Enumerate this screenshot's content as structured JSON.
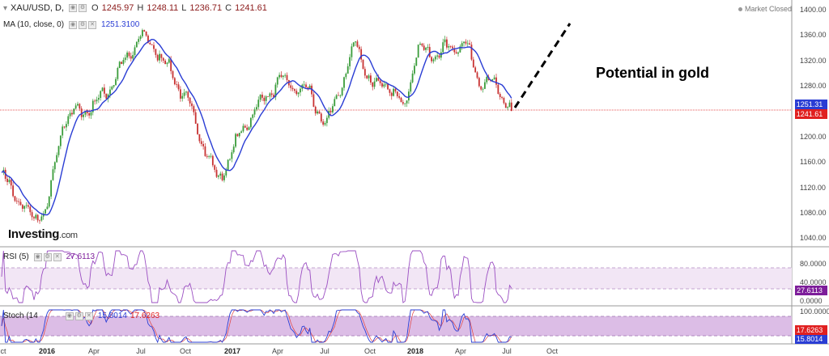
{
  "header": {
    "symbol": "XAU/USD, D,",
    "open_label": "O",
    "open": "1245.97",
    "high_label": "H",
    "high": "1248.11",
    "low_label": "L",
    "low": "1236.71",
    "close_label": "C",
    "close": "1241.61",
    "ma_label": "MA (10, close, 0)",
    "ma_value": "1251.3100",
    "market_status": "Market Closed"
  },
  "annotation": "Potential in gold",
  "logo": {
    "main": "Investing",
    "suffix": ".com"
  },
  "price_axis": {
    "ticks": [
      "1400.00",
      "1360.00",
      "1320.00",
      "1280.00",
      "1240.00",
      "1200.00",
      "1160.00",
      "1120.00",
      "1080.00",
      "1040.00"
    ]
  },
  "price_labels": {
    "ma": "1251.31",
    "close": "1241.61"
  },
  "rsi": {
    "label": "RSI (5)",
    "value": "27.6113",
    "ticks": [
      "80.0000",
      "40.0000",
      "0.0000"
    ]
  },
  "stoch": {
    "label": "Stoch (14",
    "k_value": "15.8014",
    "d_value": "17.6263",
    "ticks": [
      "100.0000"
    ]
  },
  "x_axis": {
    "ticks": [
      "ct",
      "2016",
      "Apr",
      "Jul",
      "Oct",
      "2017",
      "Apr",
      "Jul",
      "Oct",
      "2018",
      "Apr",
      "Jul",
      "Oct"
    ]
  },
  "colors": {
    "ma_line": "#2a3dd4",
    "up_candle": "#3a9c3a",
    "down_candle": "#c83232",
    "current_price": "#e02020",
    "rsi_line": "#9b4fc2",
    "stoch_k": "#2a3dd4",
    "band_fill": "#cfa6df",
    "annotation": "#000000"
  },
  "chart_data": {
    "type": "line",
    "title": "XAU/USD, D,",
    "x": [
      "2015-10",
      "2016-01",
      "2016-04",
      "2016-07",
      "2016-10",
      "2017-01",
      "2017-04",
      "2017-07",
      "2017-10",
      "2018-01",
      "2018-04",
      "2018-07"
    ],
    "ylim": [
      1030,
      1410
    ],
    "series": [
      {
        "name": "XAU/USD",
        "x": [
          "2015-10",
          "2015-12",
          "2016-01",
          "2016-02",
          "2016-04",
          "2016-05",
          "2016-07",
          "2016-08",
          "2016-10",
          "2016-12",
          "2017-02",
          "2017-04",
          "2017-06",
          "2017-07",
          "2017-09",
          "2017-10",
          "2017-11",
          "2017-12",
          "2018-01",
          "2018-02",
          "2018-04",
          "2018-05",
          "2018-06",
          "2018-07"
        ],
        "values": [
          1140,
          1070,
          1090,
          1230,
          1250,
          1280,
          1360,
          1340,
          1260,
          1130,
          1230,
          1290,
          1270,
          1215,
          1350,
          1280,
          1285,
          1245,
          1340,
          1330,
          1350,
          1290,
          1280,
          1241.61
        ]
      },
      {
        "name": "MA (10, close, 0)",
        "last": 1251.31
      }
    ],
    "indicators": {
      "RSI (5)": 27.6113,
      "Stoch %K": 15.8014,
      "Stoch %D": 17.6263
    }
  }
}
